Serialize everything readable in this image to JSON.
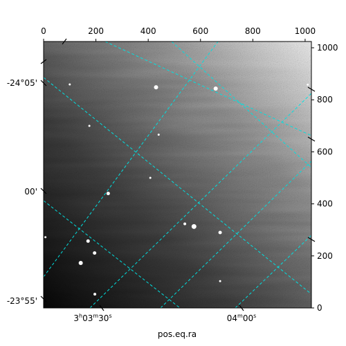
{
  "chart_data": {
    "type": "heatmap",
    "title": "",
    "xlabel": "pos.eq.ra",
    "ylabel": "",
    "pixel_axes": {
      "x_range": [
        0,
        1024
      ],
      "y_range": [
        0,
        1024
      ],
      "x_ticks": [
        0,
        200,
        400,
        600,
        800,
        1000
      ],
      "y_ticks": [
        0,
        200,
        400,
        600,
        800,
        1000
      ],
      "x_tick_labels": [
        "0",
        "200",
        "400",
        "600",
        "800",
        "1000"
      ],
      "y_tick_labels": [
        "0",
        "200",
        "400",
        "600",
        "800",
        "1000"
      ]
    },
    "world_axes": {
      "ra_tick_labels": [
        {
          "main": "3",
          "sup1": "h",
          "mid": "03",
          "sup2": "m",
          "end": "30",
          "sup3": "s"
        },
        {
          "main": "",
          "sup1": "",
          "mid": "04",
          "sup2": "m",
          "end": "00",
          "sup3": "s"
        }
      ],
      "dec_tick_labels": [
        "-24°05'",
        "00'",
        "-23°55'"
      ]
    },
    "grid": true,
    "grid_color": "#00e0e0",
    "colormap": "gray",
    "stars": [
      {
        "x": 430,
        "y": 848,
        "size": 3
      },
      {
        "x": 658,
        "y": 843,
        "size": 3
      },
      {
        "x": 100,
        "y": 859,
        "size": 1.5
      },
      {
        "x": 175,
        "y": 700,
        "size": 1.5
      },
      {
        "x": 440,
        "y": 666,
        "size": 1.5
      },
      {
        "x": 247,
        "y": 440,
        "size": 2.5
      },
      {
        "x": 408,
        "y": 500,
        "size": 1.5
      },
      {
        "x": 575,
        "y": 313,
        "size": 3.5
      },
      {
        "x": 675,
        "y": 290,
        "size": 2.5
      },
      {
        "x": 540,
        "y": 323,
        "size": 2
      },
      {
        "x": 170,
        "y": 257,
        "size": 2.5
      },
      {
        "x": 195,
        "y": 211,
        "size": 2.5
      },
      {
        "x": 142,
        "y": 173,
        "size": 3
      },
      {
        "x": 7,
        "y": 272,
        "size": 1.5
      },
      {
        "x": 196,
        "y": 53,
        "size": 2
      },
      {
        "x": 675,
        "y": 103,
        "size": 1.5
      },
      {
        "x": 1010,
        "y": 858,
        "size": 1.5
      }
    ]
  }
}
